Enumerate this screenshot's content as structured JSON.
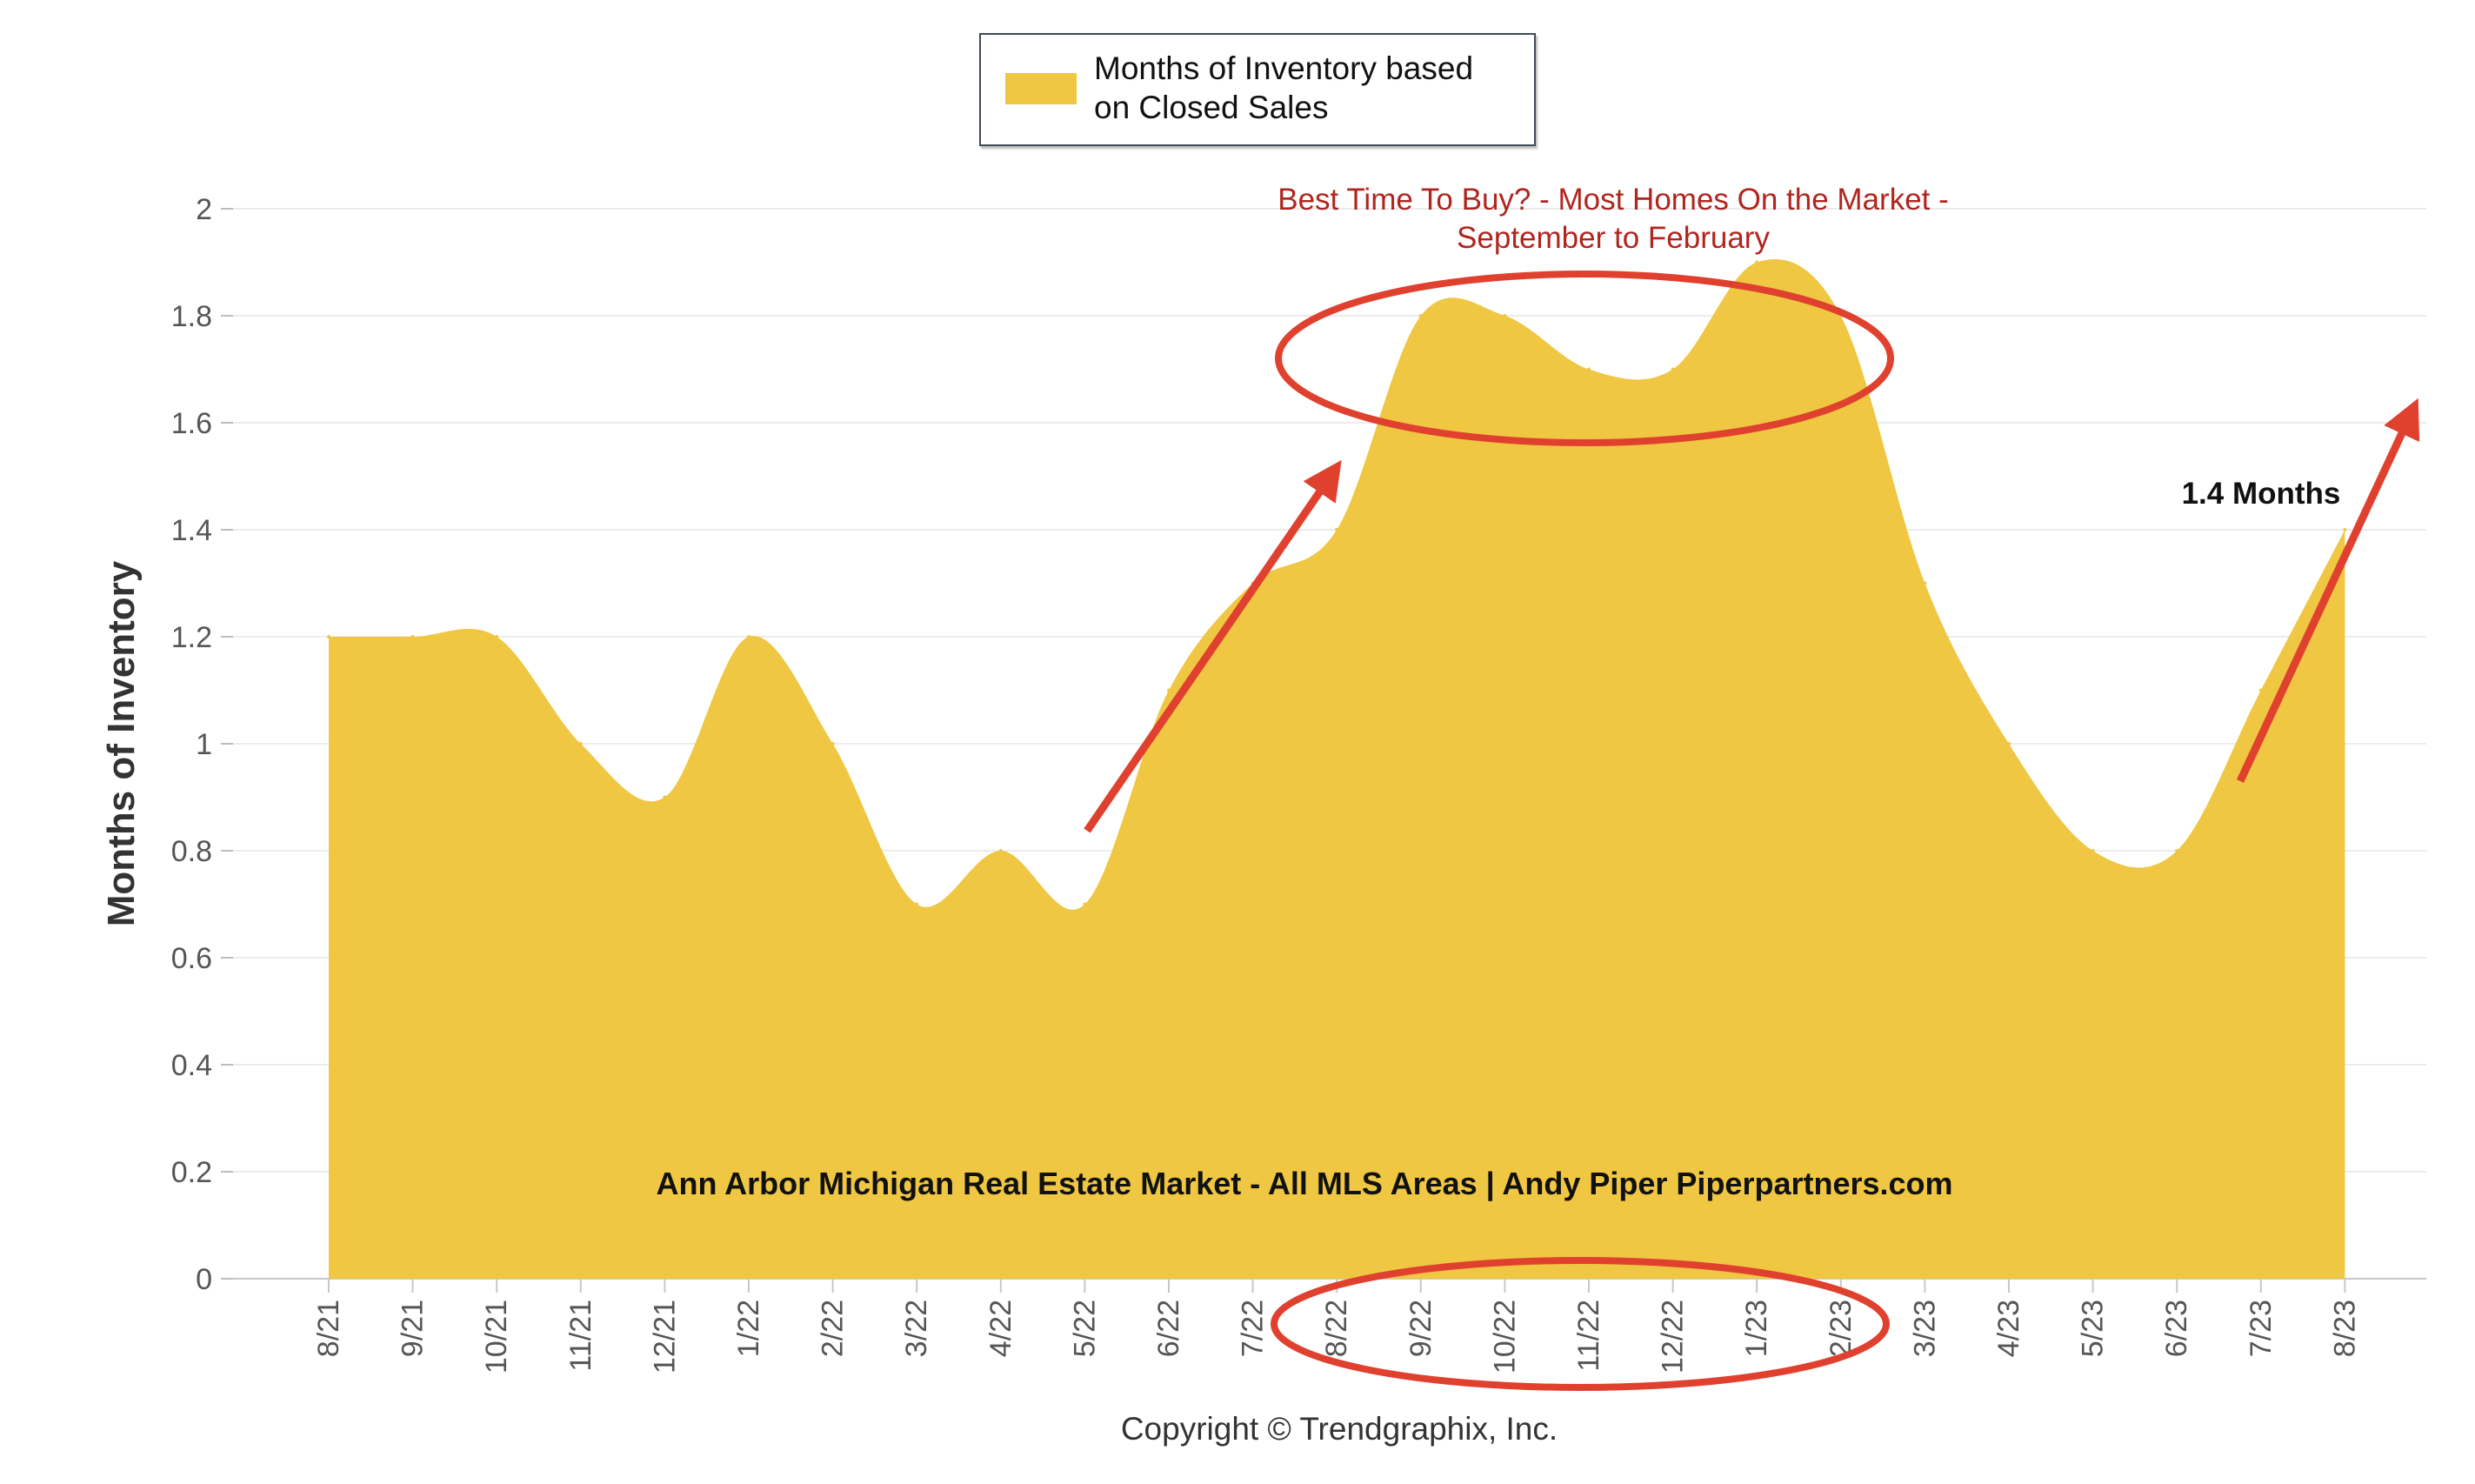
{
  "chart_data": {
    "type": "area",
    "categories": [
      "8/21",
      "9/21",
      "10/21",
      "11/21",
      "12/21",
      "1/22",
      "2/22",
      "3/22",
      "4/22",
      "5/22",
      "6/22",
      "7/22",
      "8/22",
      "9/22",
      "10/22",
      "11/22",
      "12/22",
      "1/23",
      "2/23",
      "3/23",
      "4/23",
      "5/23",
      "6/23",
      "7/23",
      "8/23"
    ],
    "series": [
      {
        "name": "Months of Inventory based on Closed Sales",
        "values": [
          1.2,
          1.2,
          1.2,
          1.0,
          0.9,
          1.2,
          1.0,
          0.7,
          0.8,
          0.7,
          1.1,
          1.3,
          1.4,
          1.8,
          1.8,
          1.7,
          1.7,
          1.9,
          1.8,
          1.3,
          1.0,
          0.8,
          0.8,
          1.1,
          1.4
        ],
        "color": "#efc743"
      }
    ],
    "ylim": [
      0,
      2
    ],
    "yticks": [
      "0",
      "0.2",
      "0.4",
      "0.6",
      "0.8",
      "1",
      "1.2",
      "1.4",
      "1.6",
      "1.8",
      "2"
    ],
    "xlabel": "",
    "ylabel": "Months of Inventory",
    "grid": true,
    "legend_position": "top-center",
    "annotations": {
      "best_time": "Best Time To Buy? - Most Homes On the Market - September to February",
      "months": "1.4 Months",
      "watermark": "Ann Arbor Michigan Real Estate Market - All MLS Areas | Andy Piper Piperpartners.com"
    },
    "copyright": "Copyright © Trendgraphix, Inc.",
    "highlight_color": "#e0412f"
  }
}
